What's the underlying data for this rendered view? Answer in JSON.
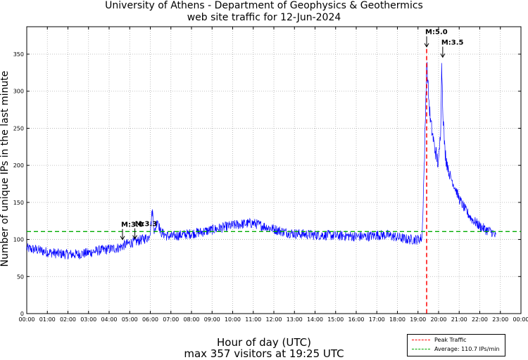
{
  "chart_data": {
    "type": "line",
    "title": "University of Athens - Department of Geophysics & Geothermics",
    "subtitle": "web site traffic for 12-Jun-2024",
    "xlabel": "Hour of day (UTC)",
    "ylabel": "Number of unique IPs in the last minute",
    "footer": "max 357 visitors at 19:25 UTC",
    "xlim": [
      0,
      24
    ],
    "ylim": [
      0,
      387
    ],
    "yticks": [
      0,
      50,
      100,
      150,
      200,
      250,
      300,
      350
    ],
    "xticks": [
      "00:00",
      "01:00",
      "02:00",
      "03:00",
      "04:00",
      "05:00",
      "06:00",
      "07:00",
      "08:00",
      "09:00",
      "10:00",
      "11:00",
      "12:00",
      "13:00",
      "14:00",
      "15:00",
      "16:00",
      "17:00",
      "18:00",
      "19:00",
      "20:00",
      "21:00",
      "22:00",
      "23:00",
      "00:00"
    ],
    "grid": true,
    "series": [
      {
        "name": "web site traffic",
        "color": "#0000ff",
        "x": [
          0,
          0.5,
          1,
          1.5,
          2,
          2.5,
          3,
          3.5,
          4,
          4.5,
          4.7,
          5,
          5.3,
          5.6,
          5.9,
          6.0,
          6.1,
          6.2,
          6.35,
          6.5,
          6.8,
          7,
          7.5,
          8,
          8.5,
          9,
          9.5,
          10,
          10.5,
          11,
          11.5,
          12,
          12.5,
          13,
          13.5,
          14,
          14.5,
          15,
          15.5,
          16,
          16.5,
          17,
          17.5,
          18,
          18.5,
          19,
          19.2,
          19.35,
          19.42,
          19.5,
          19.6,
          19.8,
          20.0,
          20.1,
          20.15,
          20.2,
          20.3,
          20.5,
          20.8,
          21,
          21.3,
          21.6,
          22,
          22.3,
          22.6,
          22.8
        ],
        "y": [
          88,
          86,
          83,
          81,
          80,
          80,
          82,
          85,
          87,
          89,
          92,
          95,
          97,
          100,
          103,
          112,
          140,
          108,
          128,
          110,
          105,
          104,
          106,
          108,
          110,
          113,
          116,
          119,
          121,
          122,
          118,
          114,
          110,
          108,
          107,
          106,
          106,
          105,
          105,
          104,
          104,
          106,
          106,
          103,
          100,
          100,
          102,
          250,
          345,
          300,
          260,
          225,
          200,
          250,
          340,
          280,
          220,
          190,
          170,
          155,
          140,
          128,
          118,
          113,
          110,
          103
        ],
        "noise": 7
      },
      {
        "name": "Average: 110.7 IPs/min",
        "color": "#00aa00",
        "dashed": true,
        "y": 110.7
      },
      {
        "name": "Peak Traffic",
        "color": "#ff0000",
        "dashed": true,
        "x": 19.42
      }
    ],
    "annotations": [
      {
        "text": "M:3.0",
        "x": 4.65,
        "y": 97
      },
      {
        "text": "M:3.3",
        "x": 5.25,
        "y": 98
      },
      {
        "text": "M:5.0",
        "x": 19.42,
        "y": 357
      },
      {
        "text": "M:3.5",
        "x": 20.2,
        "y": 343
      }
    ],
    "legend": {
      "placement": "bottom-right",
      "entries": [
        {
          "label": "Peak Traffic",
          "color": "#ff0000"
        },
        {
          "label": "Average: 110.7 IPs/min",
          "color": "#00aa00"
        }
      ]
    }
  }
}
